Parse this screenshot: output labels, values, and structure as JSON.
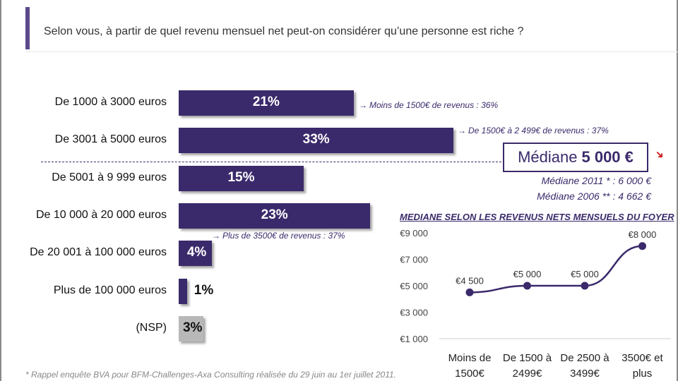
{
  "title": "Selon vous, à partir de quel revenu mensuel net peut-on considérer qu’une personne est riche ?",
  "colors": {
    "bar": "#3b2a6b",
    "nsp": "#b8b8b8",
    "accent": "#cc1a1a"
  },
  "chart_data": [
    {
      "type": "bar",
      "orientation": "horizontal",
      "categories": [
        "De 1000 à 3000 euros",
        "De 3001 à 5000 euros",
        "De 5001 à 9 999 euros",
        "De 10 000 à 20 000 euros",
        "De 20 001 à 100 000 euros",
        "Plus de 100 000 euros",
        "(NSP)"
      ],
      "values": [
        21,
        33,
        15,
        23,
        4,
        1,
        3
      ],
      "value_labels": [
        "21%",
        "33%",
        "15%",
        "23%",
        "4%",
        "1%",
        "3%"
      ],
      "unit": "%"
    },
    {
      "type": "line",
      "title": "MEDIANE SELON LES REVENUS NETS MENSUELS DU FOYER",
      "categories": [
        "Moins de 1500€",
        "De 1500 à 2499€",
        "De 2500 à 3499€",
        "3500€ et plus"
      ],
      "category_lines": [
        [
          "Moins de",
          "1500€"
        ],
        [
          "De 1500 à",
          "2499€"
        ],
        [
          "De 2500 à",
          "3499€"
        ],
        [
          "3500€ et",
          "plus"
        ]
      ],
      "values": [
        4500,
        5000,
        5000,
        8000
      ],
      "value_labels": [
        "€4 500",
        "€5 000",
        "€5 000",
        "€8 000"
      ],
      "ylim": [
        1000,
        9000
      ],
      "yticks": [
        1000,
        3000,
        5000,
        7000,
        9000
      ],
      "ytick_labels": [
        "€1 000",
        "€3 000",
        "€5 000",
        "€7 000",
        "€9 000"
      ]
    }
  ],
  "notes": {
    "n1": "Moins de 1500€ de revenus : 36%",
    "n2": "De 1500€ à 2 499€ de revenus : 37%",
    "n3": "Plus de 3500€ de revenus : 37%"
  },
  "median": {
    "label": "Médiane",
    "value": "5 000 €",
    "sub2011": "Médiane 2011 * : 6 000 €",
    "sub2006": "Médiane 2006 ** : 4 662 €"
  },
  "footnote": "* Rappel enquête BVA pour BFM-Challenges-Axa Consulting réalisée du 29 juin au 1er juillet 2011."
}
